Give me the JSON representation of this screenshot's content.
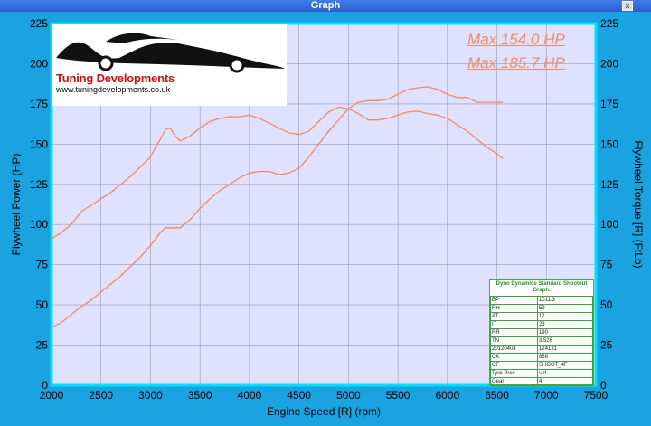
{
  "window": {
    "title": "Graph",
    "close_label": "x"
  },
  "logo": {
    "brand": "Tuning Developments",
    "url": "www.tuningdevelopments.co.uk"
  },
  "max_labels": [
    "Max 154.0 HP",
    "Max 185.7 HP"
  ],
  "colors": {
    "curve": "#f08b66",
    "plot_bg": "#e0e0ff",
    "frame": "#00e0ff",
    "outer": "#1aa3e0"
  },
  "info_box": {
    "title": "Dyno Dynamics Standard Shootout Graph.",
    "rows": [
      [
        "BP",
        "1011.3"
      ],
      [
        "RH",
        "59"
      ],
      [
        "AT",
        "12"
      ],
      [
        "IT",
        "23"
      ],
      [
        "RR",
        "190"
      ],
      [
        "TN",
        "3.526"
      ],
      [
        "20120404",
        "124131"
      ],
      [
        "CK",
        "868"
      ],
      [
        "CF",
        "SHOOT_4F"
      ],
      [
        "Tyre Pres.",
        "std"
      ],
      [
        "Gear",
        "4"
      ]
    ]
  },
  "chart_data": {
    "type": "line",
    "xlabel": "Engine Speed [R] (rpm)",
    "ylabel": "Flywheel Power (HP)",
    "y2label": "Flywheel Torque [R] (FtLb)",
    "xlim": [
      2000,
      7500
    ],
    "ylim": [
      0,
      225
    ],
    "y2lim": [
      0,
      225
    ],
    "x_ticks": [
      2000,
      2500,
      3000,
      3500,
      4000,
      4500,
      5000,
      5500,
      6000,
      6500,
      7000,
      7500
    ],
    "y_ticks": [
      0,
      25,
      50,
      75,
      100,
      125,
      150,
      175,
      200,
      225
    ],
    "grid": true,
    "series": [
      {
        "x": [
          2000,
          2100,
          2200,
          2300,
          2400,
          2500,
          2600,
          2700,
          2800,
          2900,
          3000,
          3100,
          3150,
          3200,
          3300,
          3400,
          3500,
          3600,
          3700,
          3800,
          3900,
          4000,
          4100,
          4200,
          4300,
          4400,
          4500,
          4600,
          4700,
          4800,
          4900,
          5000,
          5100,
          5200,
          5300,
          5400,
          5500,
          5600,
          5700,
          5800,
          5900,
          6000,
          6100,
          6200,
          6300,
          6400,
          6500,
          6560
        ],
        "y": [
          36,
          39,
          44,
          49,
          53,
          58,
          63,
          68,
          74,
          80,
          87,
          95,
          98,
          98,
          98,
          103,
          110,
          116,
          121,
          125,
          129,
          132,
          133,
          133,
          131,
          132,
          135,
          142,
          150,
          158,
          165,
          172,
          176,
          177,
          177,
          178,
          181,
          184,
          185,
          185.7,
          184,
          181,
          179,
          179,
          176,
          176,
          176,
          176
        ]
      },
      {
        "x": [
          2000,
          2100,
          2200,
          2300,
          2400,
          2500,
          2600,
          2700,
          2800,
          2900,
          3000,
          3050,
          3100,
          3150,
          3200,
          3250,
          3300,
          3400,
          3500,
          3600,
          3700,
          3800,
          3900,
          4000,
          4100,
          4200,
          4300,
          4400,
          4500,
          4600,
          4700,
          4800,
          4900,
          5000,
          5100,
          5200,
          5300,
          5400,
          5500,
          5600,
          5700,
          5800,
          5900,
          6000,
          6100,
          6200,
          6300,
          6400,
          6500,
          6560
        ],
        "y": [
          91,
          95,
          100,
          108,
          112,
          116,
          120,
          125,
          130,
          136,
          142,
          148,
          153,
          159,
          160,
          155,
          152,
          155,
          160,
          164,
          166,
          167,
          167,
          168,
          166,
          163,
          160,
          157,
          156,
          158,
          164,
          170,
          173,
          172,
          169,
          165,
          165,
          166,
          168,
          170,
          170.5,
          169,
          168,
          166,
          162,
          158,
          153,
          148,
          144,
          141
        ]
      }
    ]
  }
}
